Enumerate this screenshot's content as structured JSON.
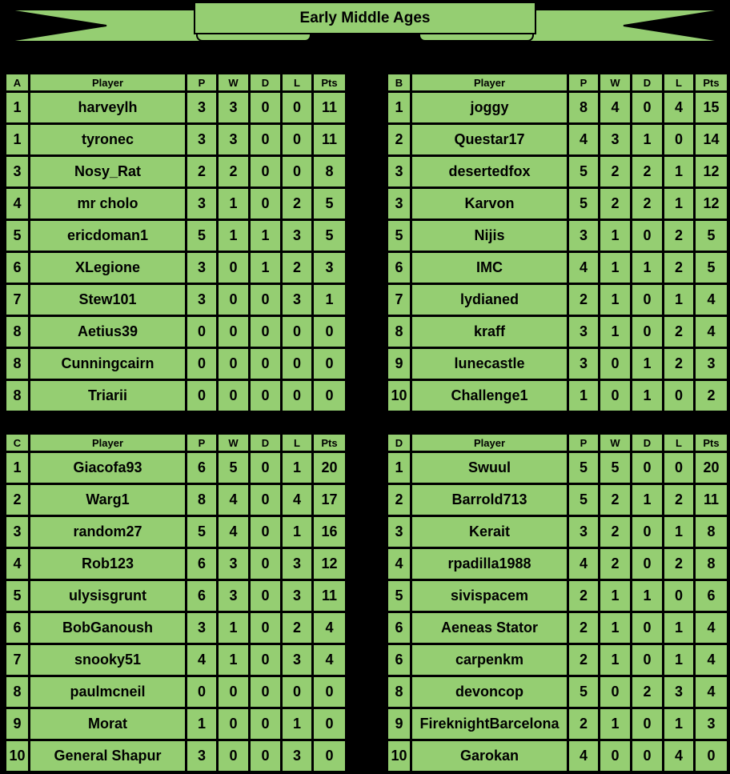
{
  "banner": {
    "title": "Early Middle Ages"
  },
  "colors": {
    "ribbon_and_cell_green": "#95ce72",
    "page_background": "#000000",
    "line_and_text_black": "#000000"
  },
  "chart_data": [
    {
      "type": "table",
      "group": "A",
      "columns": [
        "A",
        "Player",
        "P",
        "W",
        "D",
        "L",
        "Pts"
      ],
      "rows": [
        [
          1,
          "harveylh",
          3,
          3,
          0,
          0,
          11
        ],
        [
          1,
          "tyronec",
          3,
          3,
          0,
          0,
          11
        ],
        [
          3,
          "Nosy_Rat",
          2,
          2,
          0,
          0,
          8
        ],
        [
          4,
          "mr cholo",
          3,
          1,
          0,
          2,
          5
        ],
        [
          5,
          "ericdoman1",
          5,
          1,
          1,
          3,
          5
        ],
        [
          6,
          "XLegione",
          3,
          0,
          1,
          2,
          3
        ],
        [
          7,
          "Stew101",
          3,
          0,
          0,
          3,
          1
        ],
        [
          8,
          "Aetius39",
          0,
          0,
          0,
          0,
          0
        ],
        [
          8,
          "Cunningcairn",
          0,
          0,
          0,
          0,
          0
        ],
        [
          8,
          "Triarii",
          0,
          0,
          0,
          0,
          0
        ]
      ]
    },
    {
      "type": "table",
      "group": "B",
      "columns": [
        "B",
        "Player",
        "P",
        "W",
        "D",
        "L",
        "Pts"
      ],
      "rows": [
        [
          1,
          "joggy",
          8,
          4,
          0,
          4,
          15
        ],
        [
          2,
          "Questar17",
          4,
          3,
          1,
          0,
          14
        ],
        [
          3,
          "desertedfox",
          5,
          2,
          2,
          1,
          12
        ],
        [
          3,
          "Karvon",
          5,
          2,
          2,
          1,
          12
        ],
        [
          5,
          "Nijis",
          3,
          1,
          0,
          2,
          5
        ],
        [
          6,
          "IMC",
          4,
          1,
          1,
          2,
          5
        ],
        [
          7,
          "lydianed",
          2,
          1,
          0,
          1,
          4
        ],
        [
          8,
          "kraff",
          3,
          1,
          0,
          2,
          4
        ],
        [
          9,
          "lunecastle",
          3,
          0,
          1,
          2,
          3
        ],
        [
          10,
          "Challenge1",
          1,
          0,
          1,
          0,
          2
        ]
      ]
    },
    {
      "type": "table",
      "group": "C",
      "columns": [
        "C",
        "Player",
        "P",
        "W",
        "D",
        "L",
        "Pts"
      ],
      "rows": [
        [
          1,
          "Giacofa93",
          6,
          5,
          0,
          1,
          20
        ],
        [
          2,
          "Warg1",
          8,
          4,
          0,
          4,
          17
        ],
        [
          3,
          "random27",
          5,
          4,
          0,
          1,
          16
        ],
        [
          4,
          "Rob123",
          6,
          3,
          0,
          3,
          12
        ],
        [
          5,
          "ulysisgrunt",
          6,
          3,
          0,
          3,
          11
        ],
        [
          6,
          "BobGanoush",
          3,
          1,
          0,
          2,
          4
        ],
        [
          7,
          "snooky51",
          4,
          1,
          0,
          3,
          4
        ],
        [
          8,
          "paulmcneil",
          0,
          0,
          0,
          0,
          0
        ],
        [
          9,
          "Morat",
          1,
          0,
          0,
          1,
          0
        ],
        [
          10,
          "General Shapur",
          3,
          0,
          0,
          3,
          0
        ]
      ]
    },
    {
      "type": "table",
      "group": "D",
      "columns": [
        "D",
        "Player",
        "P",
        "W",
        "D",
        "L",
        "Pts"
      ],
      "rows": [
        [
          1,
          "Swuul",
          5,
          5,
          0,
          0,
          20
        ],
        [
          2,
          "Barrold713",
          5,
          2,
          1,
          2,
          11
        ],
        [
          3,
          "Kerait",
          3,
          2,
          0,
          1,
          8
        ],
        [
          4,
          "rpadilla1988",
          4,
          2,
          0,
          2,
          8
        ],
        [
          5,
          "sivispacem",
          2,
          1,
          1,
          0,
          6
        ],
        [
          6,
          "Aeneas Stator",
          2,
          1,
          0,
          1,
          4
        ],
        [
          6,
          "carpenkm",
          2,
          1,
          0,
          1,
          4
        ],
        [
          8,
          "devoncop",
          5,
          0,
          2,
          3,
          4
        ],
        [
          9,
          "FireknightBarcelona",
          2,
          1,
          0,
          1,
          3
        ],
        [
          10,
          "Garokan",
          4,
          0,
          0,
          4,
          0
        ]
      ]
    }
  ]
}
